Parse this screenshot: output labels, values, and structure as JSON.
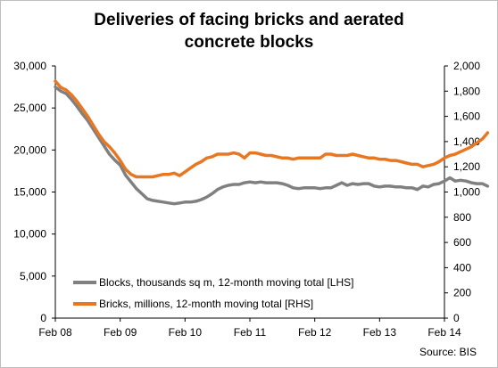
{
  "chart_data": {
    "type": "line",
    "title_line1": "Deliveries of facing bricks and aerated",
    "title_line2": "concrete blocks",
    "x_ticks": [
      "Feb 08",
      "Feb 09",
      "Feb 10",
      "Feb 11",
      "Feb 12",
      "Feb 13",
      "Feb 14"
    ],
    "y_left": {
      "ticks": [
        "0",
        "5,000",
        "10,000",
        "15,000",
        "20,000",
        "25,000",
        "30,000"
      ],
      "ylim": [
        0,
        30000
      ]
    },
    "y_right": {
      "ticks": [
        "0",
        "200",
        "400",
        "600",
        "800",
        "1,000",
        "1,200",
        "1,400",
        "1,600",
        "1,800",
        "2,000"
      ],
      "ylim": [
        0,
        2000
      ]
    },
    "x_start": "2008-02",
    "series": [
      {
        "name": "Blocks, thousands sq m, 12-month moving total [LHS]",
        "axis": "left",
        "color": "#808080",
        "values": [
          27500,
          27000,
          26700,
          26000,
          25200,
          24300,
          23500,
          22500,
          21500,
          20500,
          19500,
          18800,
          18200,
          17000,
          16200,
          15400,
          14800,
          14200,
          14000,
          13900,
          13800,
          13700,
          13600,
          13700,
          13800,
          13800,
          13900,
          14100,
          14400,
          14800,
          15300,
          15600,
          15800,
          15900,
          15900,
          16100,
          16200,
          16100,
          16200,
          16100,
          16100,
          16100,
          16000,
          15800,
          15500,
          15400,
          15500,
          15500,
          15500,
          15400,
          15500,
          15500,
          15800,
          16100,
          15800,
          16000,
          15900,
          16000,
          16000,
          15700,
          15600,
          15700,
          15700,
          15600,
          15600,
          15500,
          15500,
          15300,
          15700,
          15600,
          15900,
          16000,
          16300,
          16700,
          16300,
          16400,
          16300,
          16100,
          16000,
          16000,
          15700
        ]
      },
      {
        "name": "Bricks, millions, 12-month moving total [RHS]",
        "axis": "right",
        "color": "#e87722",
        "values": [
          1880,
          1830,
          1810,
          1770,
          1720,
          1660,
          1600,
          1530,
          1460,
          1400,
          1360,
          1310,
          1250,
          1180,
          1140,
          1120,
          1120,
          1120,
          1120,
          1130,
          1140,
          1140,
          1150,
          1130,
          1160,
          1190,
          1220,
          1240,
          1270,
          1280,
          1300,
          1300,
          1300,
          1310,
          1300,
          1270,
          1310,
          1310,
          1300,
          1290,
          1290,
          1280,
          1270,
          1270,
          1260,
          1270,
          1270,
          1270,
          1270,
          1270,
          1300,
          1300,
          1290,
          1290,
          1290,
          1300,
          1290,
          1280,
          1270,
          1270,
          1260,
          1260,
          1250,
          1250,
          1240,
          1230,
          1220,
          1220,
          1200,
          1210,
          1220,
          1240,
          1270,
          1290,
          1300,
          1320,
          1340,
          1360,
          1390,
          1420,
          1470
        ]
      }
    ]
  },
  "source": "Source: BIS"
}
